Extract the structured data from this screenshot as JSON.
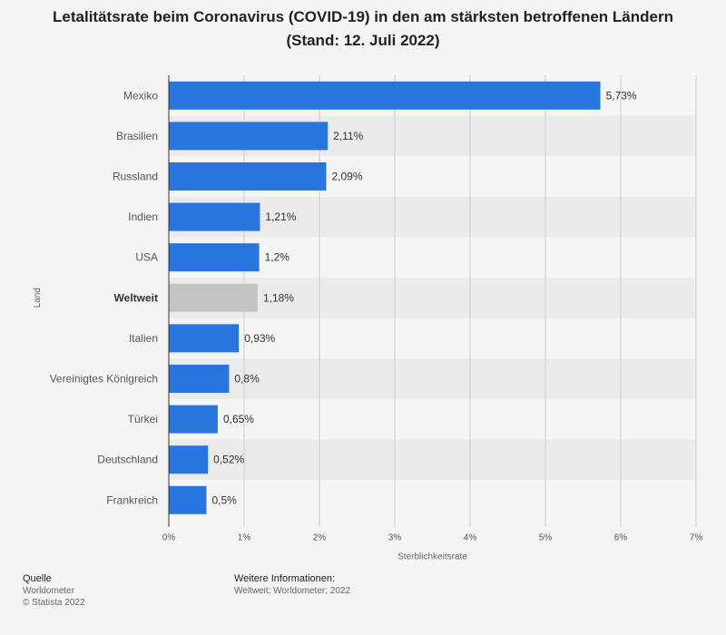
{
  "chart_data": {
    "type": "bar",
    "orientation": "horizontal",
    "title_line1": "Letalitätsrate beim Coronavirus (COVID-19) in den am stärksten betroffenen Ländern",
    "title_line2": "(Stand: 12. Juli 2022)",
    "xlabel": "Sterblichkeitsrate",
    "ylabel": "Land",
    "xlim": [
      0,
      7
    ],
    "xticks": [
      "0%",
      "1%",
      "2%",
      "3%",
      "4%",
      "5%",
      "6%",
      "7%"
    ],
    "categories": [
      "Mexiko",
      "Brasilien",
      "Russland",
      "Indien",
      "USA",
      "Weltweit",
      "Italien",
      "Vereinigtes Königreich",
      "Türkei",
      "Deutschland",
      "Frankreich"
    ],
    "values": [
      5.73,
      2.11,
      2.09,
      1.21,
      1.2,
      1.18,
      0.93,
      0.8,
      0.65,
      0.52,
      0.5
    ],
    "value_labels": [
      "5,73%",
      "2,11%",
      "2,09%",
      "1,21%",
      "1,2%",
      "1,18%",
      "0,93%",
      "0,8%",
      "0,65%",
      "0,52%",
      "0,5%"
    ],
    "highlight_category": "Weltweit",
    "colors": {
      "bar": "#2876dd",
      "highlight_bar": "#c4c4c4",
      "stripe": "#ebebeb",
      "grid": "#cccccc"
    },
    "grid": true,
    "legend": "none"
  },
  "footer": {
    "source_heading": "Quelle",
    "source_line1": "Worldometer",
    "source_line2": "© Statista 2022",
    "info_heading": "Weitere Informationen:",
    "info_text": "Weltweit; Worldometer; 2022"
  }
}
